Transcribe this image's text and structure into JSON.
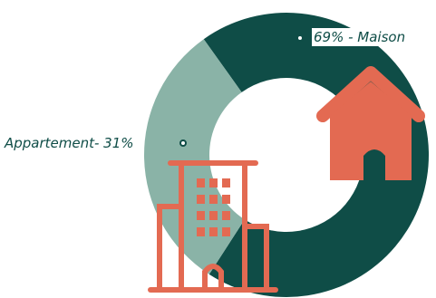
{
  "chart_data": {
    "type": "pie",
    "donut": true,
    "slices": [
      {
        "label": "69% - Maison",
        "value": 69,
        "color": "#0f4d47",
        "icon": "house-icon"
      },
      {
        "label": "Appartement- 31%",
        "value": 31,
        "color": "#8ab3a7",
        "icon": "apartment-building-icon"
      }
    ],
    "icon_color": "#e36a52"
  }
}
